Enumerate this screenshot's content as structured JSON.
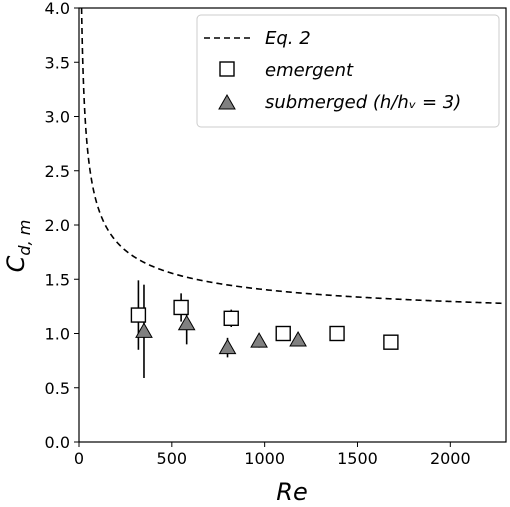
{
  "chart_data": {
    "type": "scatter",
    "xlabel": "Re",
    "ylabel": "C",
    "ylabel_sub": "d, m",
    "xlim": [
      0,
      2300
    ],
    "ylim": [
      0,
      4.0
    ],
    "xticks": [
      0,
      500,
      1000,
      1500,
      2000
    ],
    "yticks": [
      0.0,
      0.5,
      1.0,
      1.5,
      2.0,
      2.5,
      3.0,
      3.5,
      4.0
    ],
    "xtick_labels": [
      "0",
      "500",
      "1000",
      "1500",
      "2000"
    ],
    "ytick_labels": [
      "0.0",
      "0.5",
      "1.0",
      "1.5",
      "2.0",
      "2.5",
      "3.0",
      "3.5",
      "4.0"
    ],
    "grid": false,
    "legend_position": "top-right",
    "legend": [
      {
        "label": "Eq. 2",
        "marker": "dashed-line"
      },
      {
        "label": "emergent",
        "marker": "open-square"
      },
      {
        "label": "submerged (h/hᵥ = 3)",
        "marker": "filled-triangle"
      }
    ],
    "series": [
      {
        "name": "Eq. 2",
        "style": "dashed-line",
        "color": "#000000"
      },
      {
        "name": "emergent",
        "style": "open-square",
        "color": "#000000",
        "points": [
          {
            "x": 320,
            "y": 1.17,
            "err": 0.32
          },
          {
            "x": 550,
            "y": 1.24,
            "err": 0.13
          },
          {
            "x": 820,
            "y": 1.14,
            "err": 0.08
          },
          {
            "x": 1100,
            "y": 1.0,
            "err": 0.03
          },
          {
            "x": 1390,
            "y": 1.0,
            "err": 0.03
          },
          {
            "x": 1680,
            "y": 0.92,
            "err": 0.02
          }
        ]
      },
      {
        "name": "submerged (h/hᵥ = 3)",
        "style": "filled-triangle",
        "color": "#808080",
        "points": [
          {
            "x": 350,
            "y": 1.02,
            "err": 0.43
          },
          {
            "x": 580,
            "y": 1.09,
            "err": 0.19
          },
          {
            "x": 800,
            "y": 0.87,
            "err": 0.09
          },
          {
            "x": 970,
            "y": 0.93,
            "err": 0.06
          },
          {
            "x": 1180,
            "y": 0.94,
            "err": 0.04
          }
        ]
      }
    ]
  }
}
